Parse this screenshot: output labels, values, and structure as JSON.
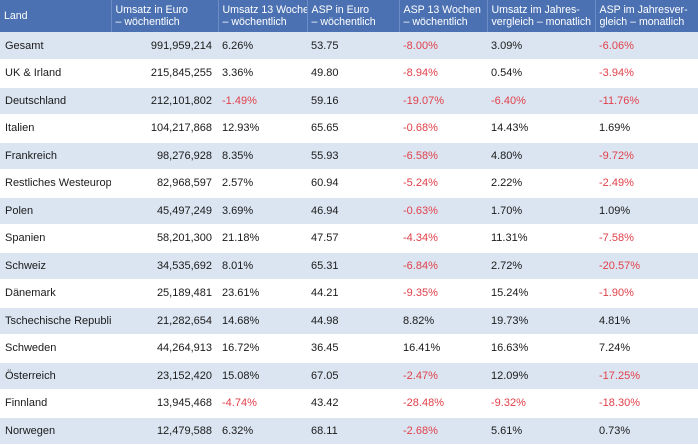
{
  "headers": [
    [
      "Land"
    ],
    [
      "Umsatz in Euro",
      "– wöchentlich"
    ],
    [
      "Umsatz 13 Wochen",
      "– wöchentlich"
    ],
    [
      "ASP in Euro",
      "– wöchentlich"
    ],
    [
      "ASP 13 Wochen",
      "– wöchentlich"
    ],
    [
      "Umsatz im Jahres-",
      "vergleich – monatlich"
    ],
    [
      "ASP im Jahresver-",
      "gleich – monatlich"
    ]
  ],
  "rows": [
    [
      "Gesamt",
      "991,959,214",
      "6.26%",
      "53.75",
      "-8.00%",
      "3.09%",
      "-6.06%"
    ],
    [
      "UK & Irland",
      "215,845,255",
      "3.36%",
      "49.80",
      "-8.94%",
      "0.54%",
      "-3.94%"
    ],
    [
      "Deutschland",
      "212,101,802",
      "-1.49%",
      "59.16",
      "-19.07%",
      "-6.40%",
      "-11.76%"
    ],
    [
      "Italien",
      "104,217,868",
      "12.93%",
      "65.65",
      "-0.68%",
      "14.43%",
      "1.69%"
    ],
    [
      "Frankreich",
      "98,276,928",
      "8.35%",
      "55.93",
      "-6.58%",
      "4.80%",
      "-9.72%"
    ],
    [
      "Restliches Westeuropa",
      "82,968,597",
      "2.57%",
      "60.94",
      "-5.24%",
      "2.22%",
      "-2.49%"
    ],
    [
      "Polen",
      "45,497,249",
      "3.69%",
      "46.94",
      "-0.63%",
      "1.70%",
      "1.09%"
    ],
    [
      "Spanien",
      "58,201,300",
      "21.18%",
      "47.57",
      "-4.34%",
      "11.31%",
      "-7.58%"
    ],
    [
      "Schweiz",
      "34,535,692",
      "8.01%",
      "65.31",
      "-6.84%",
      "2.72%",
      "-20.57%"
    ],
    [
      "Dänemark",
      "25,189,481",
      "23.61%",
      "44.21",
      "-9.35%",
      "15.24%",
      "-1.90%"
    ],
    [
      "Tschechische Republik",
      "21,282,654",
      "14.68%",
      "44.98",
      "8.82%",
      "19.73%",
      "4.81%"
    ],
    [
      "Schweden",
      "44,264,913",
      "16.72%",
      "36.45",
      "16.41%",
      "16.63%",
      "7.24%"
    ],
    [
      "Österreich",
      "23,152,420",
      "15.08%",
      "67.05",
      "-2.47%",
      "12.09%",
      "-17.25%"
    ],
    [
      "Finnland",
      "13,945,468",
      "-4.74%",
      "43.42",
      "-28.48%",
      "-9.32%",
      "-18.30%"
    ],
    [
      "Norwegen",
      "12,479,588",
      "6.32%",
      "68.11",
      "-2.68%",
      "5.61%",
      "0.73%"
    ]
  ],
  "colors": {
    "header_bg": "#4b71b2",
    "header_text": "#ffffff",
    "stripe_bg": "#dbe5f1",
    "negative_text": "#e0404a",
    "positive_text": "#1a1a1a"
  }
}
